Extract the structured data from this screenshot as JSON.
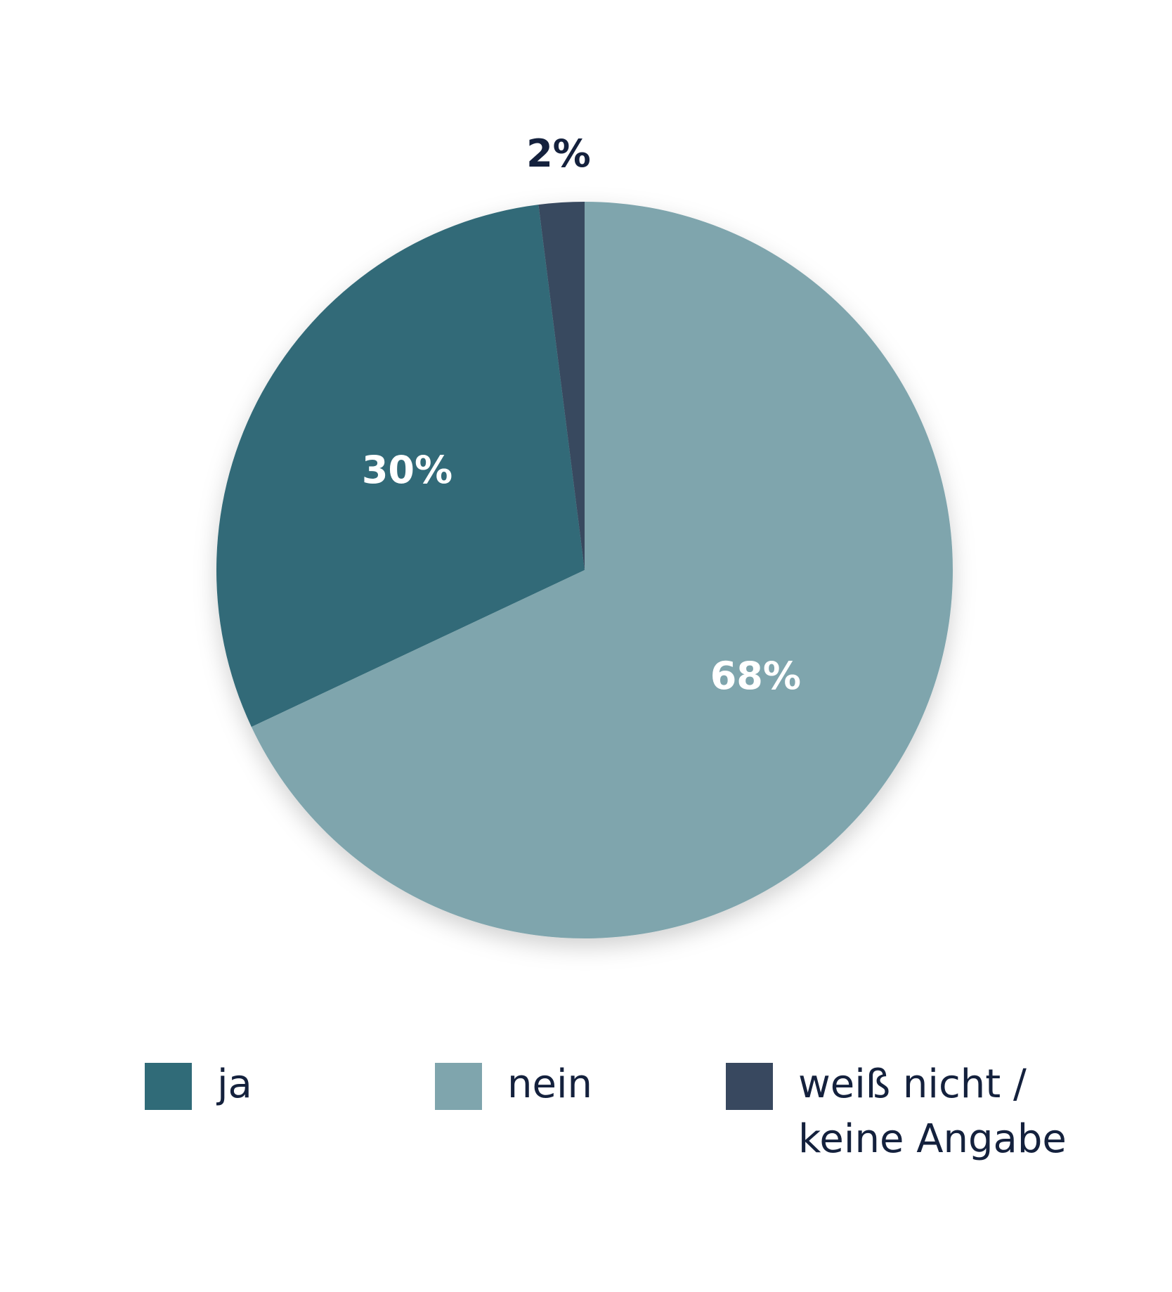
{
  "chart_data": {
    "type": "pie",
    "categories": [
      "ja",
      "nein",
      "weiß nicht / keine Angabe"
    ],
    "values": [
      30,
      68,
      2
    ],
    "value_labels": [
      "30%",
      "68%",
      "2%"
    ],
    "colors": [
      "#306b78",
      "#7fa5ad",
      "#38485f"
    ],
    "startangle": 97.2,
    "counterclock": true
  }
}
